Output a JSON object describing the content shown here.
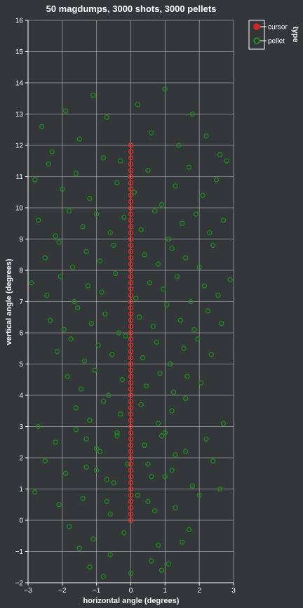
{
  "chart_data": {
    "type": "scatter",
    "title": "50 magdumps, 3000 shots, 3000 pellets",
    "xlabel": "horizontal angle (degrees)",
    "ylabel": "vertical angle (degrees)",
    "xlim": [
      -3,
      3
    ],
    "ylim": [
      -2,
      16
    ],
    "x_ticks": [
      "−3",
      "−2",
      "−1",
      "0",
      "1",
      "2",
      "3"
    ],
    "y_ticks": [
      "−2",
      "−1",
      "0",
      "1",
      "2",
      "3",
      "4",
      "5",
      "6",
      "7",
      "8",
      "9",
      "10",
      "11",
      "12",
      "13",
      "14",
      "15",
      "16"
    ],
    "grid": true,
    "legend": {
      "title": "type",
      "placement": "top-right",
      "entries": [
        {
          "name": "cursor",
          "color": "#d62728"
        },
        {
          "name": "pellet",
          "color": "#2ca02c"
        }
      ]
    },
    "series": [
      {
        "name": "cursor",
        "color": "#ff2020",
        "marker": "open-circle",
        "x": [
          0,
          0,
          0,
          0,
          0,
          0,
          0,
          0,
          0,
          0,
          0,
          0,
          0,
          0,
          0,
          0,
          0,
          0,
          0,
          0,
          0,
          0,
          0,
          0,
          0,
          0,
          0,
          0,
          0,
          0,
          0,
          0,
          0,
          0,
          0,
          0,
          0,
          0,
          0,
          0,
          0,
          0,
          0,
          0,
          0,
          0,
          0,
          0,
          0,
          0,
          0,
          0,
          0,
          0,
          0,
          0,
          0,
          0,
          0,
          0,
          0
        ],
        "y": [
          0.0,
          0.2,
          0.4,
          0.6,
          0.8,
          1.0,
          1.2,
          1.4,
          1.6,
          1.8,
          2.0,
          2.2,
          2.4,
          2.6,
          2.8,
          3.0,
          3.2,
          3.4,
          3.6,
          3.8,
          4.0,
          4.2,
          4.4,
          4.6,
          4.8,
          5.0,
          5.2,
          5.4,
          5.6,
          5.8,
          6.0,
          6.2,
          6.4,
          6.6,
          6.8,
          7.0,
          7.2,
          7.4,
          7.6,
          7.8,
          8.0,
          8.2,
          8.4,
          8.6,
          8.8,
          9.0,
          9.2,
          9.4,
          9.6,
          9.8,
          10.0,
          10.2,
          10.4,
          10.6,
          10.8,
          11.0,
          11.2,
          11.4,
          11.6,
          11.8,
          12.0
        ]
      },
      {
        "name": "pellet",
        "color": "#1f8a1f",
        "marker": "open-circle",
        "x": [
          -2.6,
          -2.3,
          -1.9,
          -1.5,
          -1.1,
          -0.7,
          -0.3,
          0.2,
          0.6,
          1.0,
          1.4,
          1.8,
          2.2,
          2.6,
          -2.8,
          -2.4,
          -2.0,
          -1.6,
          -1.2,
          -0.8,
          -0.4,
          0.1,
          0.5,
          0.9,
          1.3,
          1.7,
          2.1,
          2.5,
          2.8,
          -2.7,
          -2.2,
          -1.8,
          -1.4,
          -1.0,
          -0.6,
          -0.2,
          0.3,
          0.7,
          1.1,
          1.5,
          1.9,
          2.3,
          2.7,
          -2.5,
          -2.1,
          -1.7,
          -1.3,
          -0.9,
          -0.5,
          0.0,
          0.4,
          0.8,
          1.2,
          1.6,
          2.0,
          2.4,
          -2.9,
          -2.45,
          -2.05,
          -1.65,
          -1.25,
          -0.85,
          -0.45,
          0.15,
          0.55,
          0.95,
          1.35,
          1.75,
          2.15,
          2.55,
          2.9,
          -2.35,
          -1.95,
          -1.55,
          -1.15,
          -0.75,
          -0.35,
          0.25,
          0.65,
          1.05,
          1.45,
          1.85,
          2.25,
          2.65,
          -2.15,
          -1.75,
          -1.35,
          -0.95,
          -0.55,
          -0.15,
          0.35,
          0.75,
          1.15,
          1.55,
          1.95,
          2.35,
          -1.85,
          -1.45,
          -1.05,
          -0.65,
          -0.25,
          0.45,
          0.85,
          1.25,
          1.65,
          2.05,
          -1.6,
          -1.2,
          -0.8,
          -0.3,
          0.3,
          0.8,
          1.2,
          1.6,
          -1.3,
          -0.9,
          -0.4,
          0.4,
          0.9,
          1.3,
          -1.0,
          -0.5,
          0.5,
          1.0,
          -0.7,
          0.2,
          0.7,
          -2.7,
          -2.2,
          -1.6,
          -1.0,
          -0.4,
          0.4,
          1.0,
          1.6,
          2.2,
          2.7,
          -2.5,
          -1.9,
          -1.3,
          -0.7,
          -0.1,
          0.6,
          1.2,
          1.8,
          2.4,
          -2.8,
          -2.1,
          -1.4,
          -0.6,
          0.5,
          1.3,
          2.0,
          2.6,
          -1.8,
          -1.1,
          -0.2,
          0.8,
          1.7,
          -1.5,
          -0.6,
          0.6,
          1.5,
          -1.2,
          0.0,
          1.1,
          -0.8,
          0.9
        ],
        "y": [
          12.6,
          11.8,
          13.1,
          12.2,
          13.6,
          12.9,
          11.5,
          13.3,
          12.4,
          13.8,
          12.0,
          13.0,
          12.3,
          11.7,
          10.9,
          11.4,
          10.6,
          11.1,
          10.3,
          11.6,
          10.8,
          10.5,
          11.2,
          10.1,
          10.7,
          11.3,
          10.4,
          10.9,
          11.5,
          9.6,
          9.1,
          9.9,
          9.4,
          9.8,
          9.2,
          9.7,
          9.3,
          9.9,
          9.0,
          9.5,
          9.8,
          9.2,
          9.6,
          8.4,
          8.9,
          8.1,
          8.6,
          8.3,
          8.8,
          8.0,
          8.5,
          8.2,
          8.7,
          8.4,
          8.1,
          8.8,
          7.6,
          7.2,
          7.8,
          7.0,
          7.5,
          7.3,
          7.9,
          7.1,
          7.6,
          7.4,
          7.8,
          7.0,
          7.5,
          7.2,
          7.7,
          6.4,
          6.1,
          6.8,
          6.3,
          6.6,
          6.0,
          6.5,
          6.2,
          6.9,
          6.4,
          6.1,
          6.7,
          6.3,
          5.4,
          5.8,
          5.1,
          5.6,
          5.3,
          5.9,
          5.2,
          5.7,
          5.0,
          5.5,
          5.8,
          5.3,
          4.6,
          4.2,
          4.8,
          4.0,
          4.5,
          4.3,
          4.7,
          4.1,
          4.6,
          4.4,
          3.6,
          3.2,
          3.8,
          3.4,
          3.7,
          3.1,
          3.5,
          3.9,
          2.6,
          2.2,
          2.8,
          2.4,
          2.7,
          2.1,
          1.6,
          1.2,
          1.8,
          1.4,
          0.6,
          0.8,
          0.3,
          3.0,
          2.5,
          2.9,
          2.3,
          2.7,
          2.4,
          2.8,
          2.2,
          2.6,
          3.1,
          1.9,
          1.5,
          1.7,
          1.3,
          1.8,
          1.4,
          1.6,
          1.1,
          1.9,
          0.9,
          0.5,
          0.7,
          0.2,
          0.6,
          0.4,
          0.8,
          1.0,
          -0.2,
          -0.6,
          -0.4,
          -0.8,
          -0.3,
          -0.9,
          -1.1,
          -1.3,
          -0.7,
          -1.5,
          -1.7,
          -1.4,
          -1.8,
          -1.6
        ]
      }
    ]
  }
}
